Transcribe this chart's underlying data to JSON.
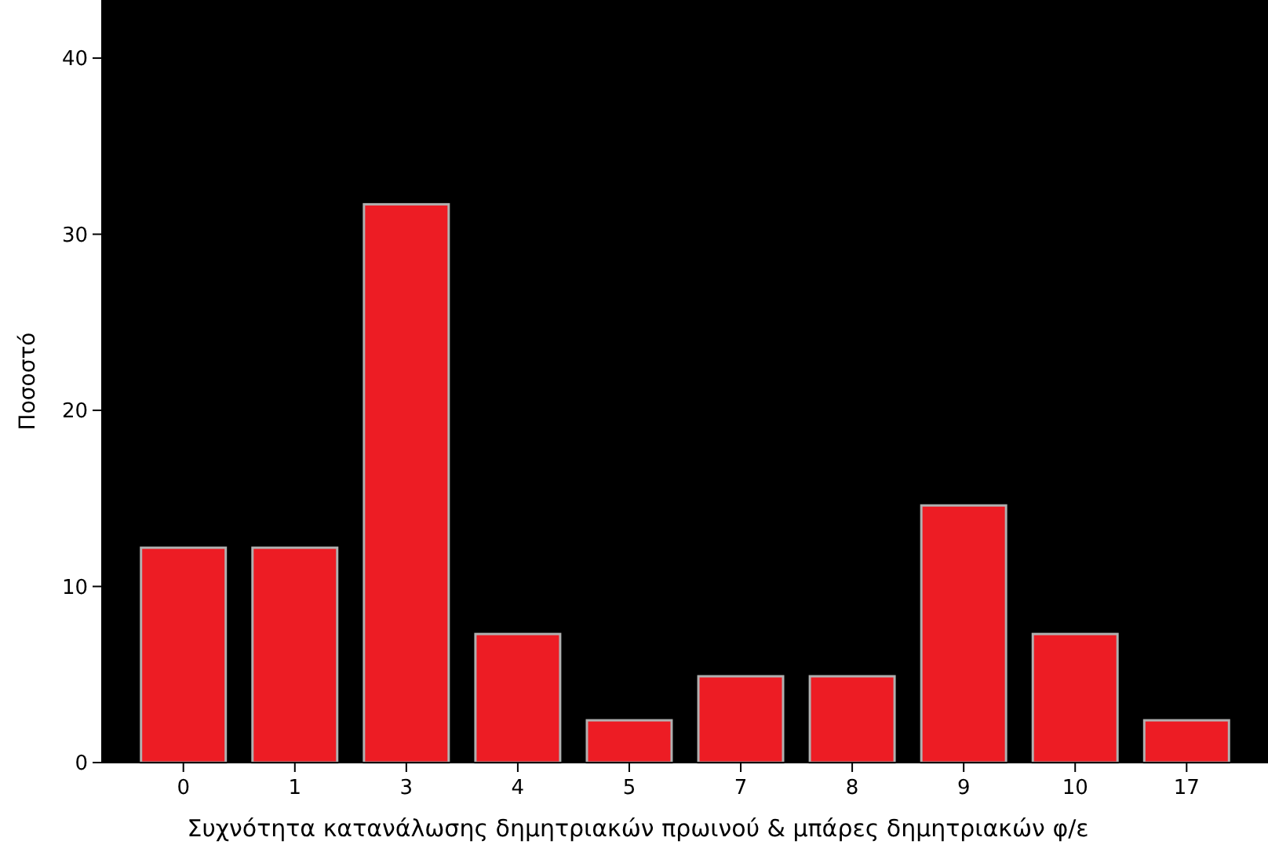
{
  "chart_data": {
    "type": "bar",
    "xlabel": "Συχνότητα κατανάλωσης δημητριακών πρωινού & μπάρες δημητριακών φ/ε",
    "ylabel": "Ποσοστό",
    "categories": [
      "0",
      "1",
      "3",
      "4",
      "5",
      "7",
      "8",
      "9",
      "10",
      "17"
    ],
    "values": [
      12.2,
      12.2,
      31.7,
      7.3,
      2.4,
      4.9,
      4.9,
      14.6,
      7.3,
      2.4
    ],
    "color": "#ed1c24",
    "ylim": [
      0,
      43.3
    ],
    "yticks": [
      0,
      10,
      20,
      30,
      40
    ],
    "grid": false
  }
}
